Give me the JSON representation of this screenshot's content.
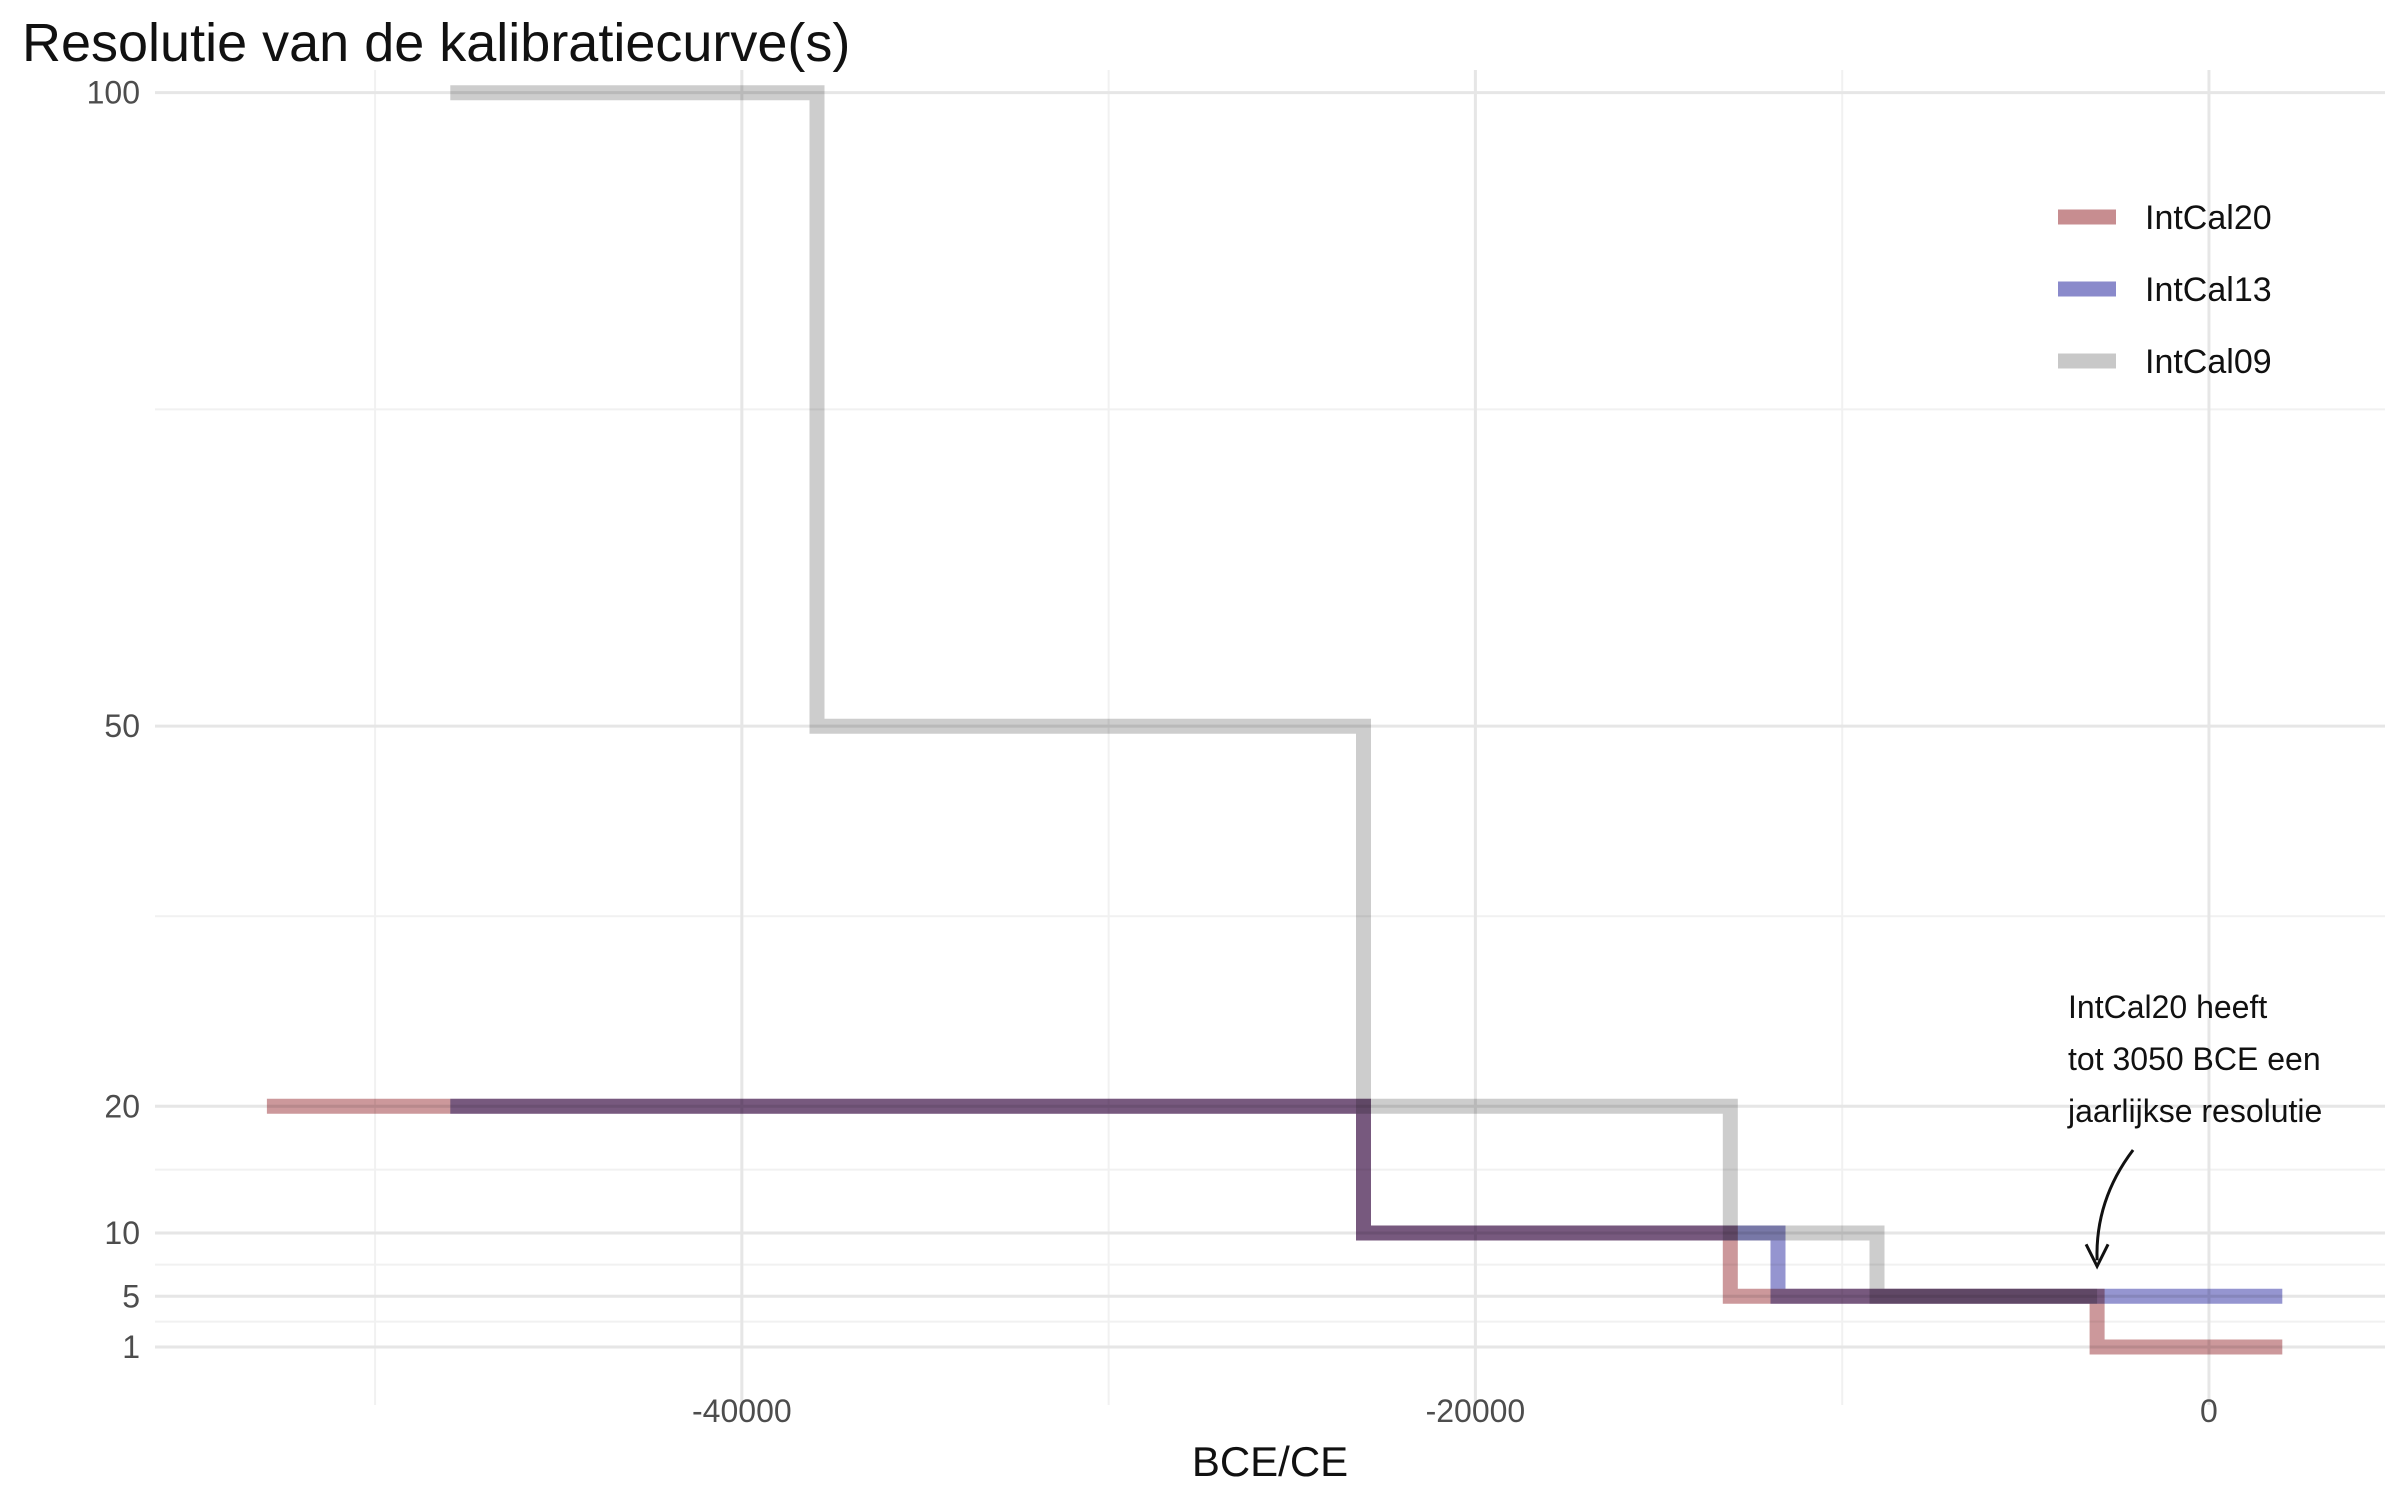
{
  "chart_data": {
    "type": "line",
    "title": "Resolutie van de kalibratiecurve(s)",
    "xlabel": "BCE/CE",
    "ylabel": "",
    "xlim": [
      -56000,
      4800
    ],
    "ylim": [
      -2,
      101
    ],
    "x_ticks": [
      -40000,
      -20000,
      0
    ],
    "y_ticks": [
      1,
      5,
      10,
      20,
      50,
      100
    ],
    "grid": true,
    "legend_position": "top-right",
    "series": [
      {
        "name": "IntCal09",
        "color": "#c8c8c8",
        "x": [
          -47950,
          -37950,
          -37950,
          -23050,
          -23050,
          -13050,
          -13050,
          -9050,
          -9050,
          -3050
        ],
        "y": [
          100,
          100,
          50,
          50,
          20,
          20,
          10,
          10,
          5,
          5
        ]
      },
      {
        "name": "IntCal13",
        "color": "#8a8acb",
        "x": [
          -47950,
          -23050,
          -23050,
          -13050,
          -13050,
          -11750,
          -11750,
          2000
        ],
        "y": [
          20,
          20,
          10,
          10,
          10,
          10,
          5,
          5
        ]
      },
      {
        "name": "IntCal20",
        "color": "#c78d90",
        "x": [
          -52950,
          -23050,
          -23050,
          -13050,
          -13050,
          -3050,
          -3050,
          2000
        ],
        "y": [
          20,
          20,
          10,
          10,
          5,
          5,
          1,
          1
        ]
      }
    ],
    "annotation": {
      "lines": [
        "IntCal20 heeft",
        "tot 3050 BCE een",
        "jaarlijkse resolutie"
      ],
      "arrow_to": {
        "x": -3050,
        "y": 5
      }
    }
  }
}
